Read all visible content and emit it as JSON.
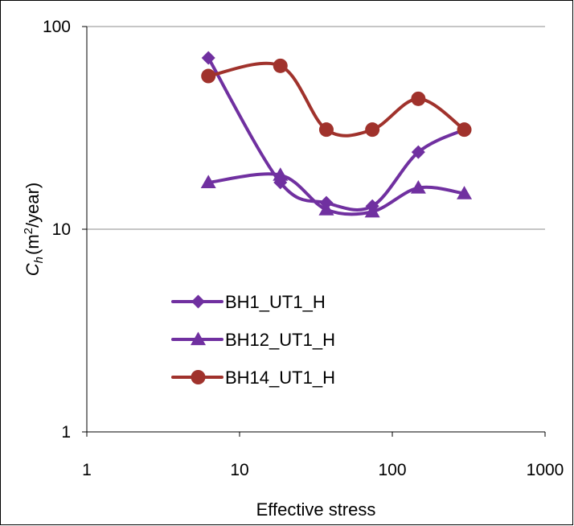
{
  "chart_data": {
    "type": "line",
    "xlabel": "Effective stress",
    "ylabel": {
      "symbol": "C",
      "subscript": "h",
      "unit_prefix": "(m",
      "superscript": "2",
      "unit_suffix": "/year)"
    },
    "x_scale": "log",
    "y_scale": "log",
    "xlim": [
      1,
      1000
    ],
    "ylim": [
      1,
      100
    ],
    "x_ticks": [
      1,
      10,
      100,
      1000
    ],
    "x_tick_labels": [
      "1",
      "10",
      "100",
      "1000"
    ],
    "y_ticks": [
      1,
      10,
      100
    ],
    "y_tick_labels": [
      "1",
      "10",
      "100"
    ],
    "gridlines": "horizontal major",
    "legend_position": "lower-left",
    "series": [
      {
        "name": "BH1_UT1_H",
        "color": "#7030a0",
        "marker": "diamond",
        "x": [
          6.25,
          18.5,
          37,
          74,
          148,
          296
        ],
        "y": [
          70,
          17,
          13.5,
          13,
          24,
          31
        ]
      },
      {
        "name": "BH12_UT1_H",
        "color": "#7030a0",
        "marker": "triangle",
        "x": [
          6.25,
          18.5,
          37,
          74,
          148,
          296
        ],
        "y": [
          17,
          18.5,
          12.5,
          12.2,
          16,
          15
        ]
      },
      {
        "name": "BH14_UT1_H",
        "color": "#a0322c",
        "marker": "circle",
        "x": [
          6.25,
          18.5,
          37,
          74,
          148,
          296
        ],
        "y": [
          57,
          64,
          31,
          31,
          44,
          31
        ]
      }
    ]
  }
}
